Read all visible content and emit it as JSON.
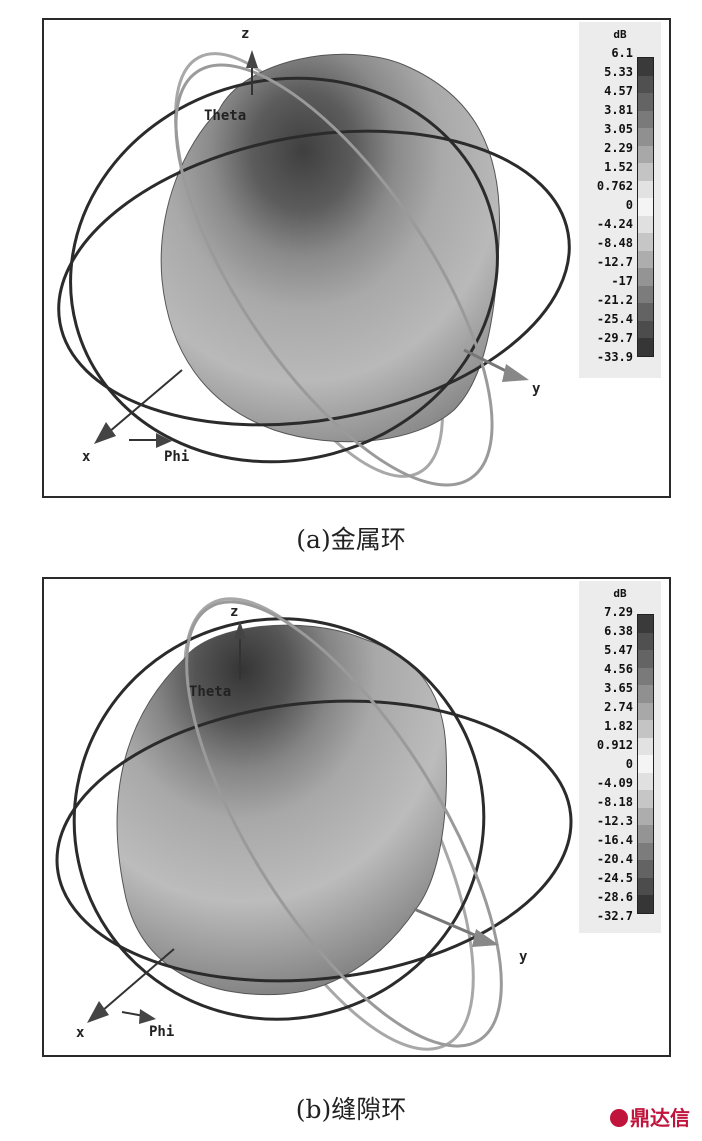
{
  "panels": [
    {
      "caption": "(a)金属环",
      "legend_unit": "dB",
      "legend_values": [
        "6.1",
        "5.33",
        "4.57",
        "3.81",
        "3.05",
        "2.29",
        "1.52",
        "0.762",
        "0",
        "-4.24",
        "-8.48",
        "-12.7",
        "-17",
        "-21.2",
        "-25.4",
        "-29.7",
        "-33.9"
      ],
      "axis_labels": {
        "z": "z",
        "y": "y",
        "x": "x",
        "theta": "Theta",
        "phi": "Phi"
      }
    },
    {
      "caption": "(b)缝隙环",
      "legend_unit": "dB",
      "legend_values": [
        "7.29",
        "6.38",
        "5.47",
        "4.56",
        "3.65",
        "2.74",
        "1.82",
        "0.912",
        "0",
        "-4.09",
        "-8.18",
        "-12.3",
        "-16.4",
        "-20.4",
        "-24.5",
        "-28.6",
        "-32.7"
      ],
      "axis_labels": {
        "z": "z",
        "y": "y",
        "x": "x",
        "theta": "Theta",
        "phi": "Phi"
      }
    }
  ],
  "colorbar_shades": [
    "#3a3a3a",
    "#505050",
    "#646464",
    "#7a7a7a",
    "#909090",
    "#a8a8a8",
    "#c4c4c4",
    "#e2e2e2",
    "#f4f4f4",
    "#e0e0e0",
    "#c6c6c6",
    "#adadad",
    "#949494",
    "#7c7c7c",
    "#636363",
    "#4c4c4c",
    "#363636"
  ],
  "watermark": "鼎达信"
}
